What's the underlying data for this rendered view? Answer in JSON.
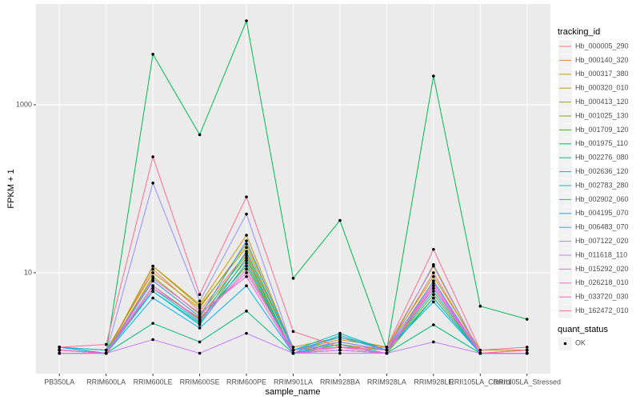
{
  "chart_data": {
    "type": "line",
    "x_label": "sample_name",
    "y_label": "FPKM + 1",
    "legend_title": "tracking_id",
    "point_legend_title": "quant_status",
    "point_legend_label": "OK",
    "point_color": "#000000",
    "log_scale": true,
    "grid": true,
    "panel_color": "#EBEBEB",
    "ylim": [
      0.63,
      15850
    ],
    "yticks": [
      10,
      1000
    ],
    "categories": [
      "PB350LA",
      "RRIM600LA",
      "RRIM600LE",
      "RRIM600SE",
      "RRIM600PE",
      "RRIM901LA",
      "RRIM928BA",
      "RRIM928LA",
      "RRIM928LE",
      "RRII105LA_Control",
      "RRII105LA_Stressed"
    ],
    "series": [
      {
        "name": "Hb_000005_290",
        "color": "#F8766D",
        "values": [
          1.3,
          1.1,
          11,
          3.5,
          17,
          1.2,
          1.5,
          1.2,
          10,
          1.1,
          1.2
        ]
      },
      {
        "name": "Hb_000140_320",
        "color": "#EA8331",
        "values": [
          1.2,
          1.1,
          8,
          3.0,
          14,
          1.1,
          1.3,
          1.1,
          8,
          1.1,
          1.1
        ]
      },
      {
        "name": "Hb_000317_380",
        "color": "#D89000",
        "values": [
          1.2,
          1.1,
          12,
          4.2,
          28,
          1.2,
          1.6,
          1.3,
          12,
          1.1,
          1.2
        ]
      },
      {
        "name": "Hb_000320_010",
        "color": "#C09B00",
        "values": [
          1.3,
          1.2,
          10,
          3.8,
          22,
          1.3,
          1.7,
          1.3,
          9,
          1.2,
          1.2
        ]
      },
      {
        "name": "Hb_000413_120",
        "color": "#A3A500",
        "values": [
          1.2,
          1.1,
          12,
          4.0,
          20,
          1.2,
          1.4,
          1.2,
          6.5,
          1.1,
          1.1
        ]
      },
      {
        "name": "Hb_001025_130",
        "color": "#7CAE00",
        "values": [
          1.2,
          1.1,
          9,
          3.2,
          16,
          1.1,
          1.3,
          1.2,
          5.5,
          1.1,
          1.1
        ]
      },
      {
        "name": "Hb_001709_120",
        "color": "#39B600",
        "values": [
          1.1,
          1.1,
          7,
          2.8,
          12,
          1.1,
          1.2,
          1.1,
          5,
          1.1,
          1.1
        ]
      },
      {
        "name": "Hb_001975_110",
        "color": "#00BB4E",
        "values": [
          1.2,
          1.1,
          4000,
          440,
          10000,
          8.6,
          42,
          1.2,
          2200,
          4,
          2.8
        ]
      },
      {
        "name": "Hb_002276_080",
        "color": "#00BF7D",
        "values": [
          1.1,
          1.1,
          2.5,
          1.5,
          3.5,
          1.1,
          1.2,
          1.1,
          2.4,
          1.1,
          1.1
        ]
      },
      {
        "name": "Hb_002636_120",
        "color": "#00C1A3",
        "values": [
          1.2,
          1.1,
          6,
          2.5,
          15,
          1.1,
          1.4,
          1.1,
          7,
          1.1,
          1.1
        ]
      },
      {
        "name": "Hb_002783_280",
        "color": "#00BFC4",
        "values": [
          1.3,
          1.1,
          6.5,
          2.6,
          18,
          1.2,
          1.9,
          1.2,
          6,
          1.1,
          1.1
        ]
      },
      {
        "name": "Hb_002902_060",
        "color": "#00BAE0",
        "values": [
          1.3,
          1.2,
          6,
          2.4,
          13,
          1.1,
          1.8,
          1.2,
          5,
          1.1,
          1.1
        ]
      },
      {
        "name": "Hb_004195_070",
        "color": "#00B0F6",
        "values": [
          1.3,
          1.1,
          5,
          2.2,
          7,
          1.1,
          1.5,
          1.2,
          4.5,
          1.1,
          1.1
        ]
      },
      {
        "name": "Hb_006483_070",
        "color": "#35A2FF",
        "values": [
          1.2,
          1.1,
          8,
          3.0,
          24,
          1.2,
          1.7,
          1.2,
          8,
          1.1,
          1.1
        ]
      },
      {
        "name": "Hb_007122_020",
        "color": "#9590FF",
        "values": [
          1.2,
          1.1,
          117,
          4.6,
          50,
          1.2,
          1.5,
          1.2,
          12.5,
          1.1,
          1.1
        ]
      },
      {
        "name": "Hb_011618_110",
        "color": "#C77CFF",
        "values": [
          1.1,
          1.1,
          1.6,
          1.1,
          1.9,
          1.1,
          1.1,
          1.1,
          1.5,
          1.1,
          1.1
        ]
      },
      {
        "name": "Hb_015292_020",
        "color": "#E76BF3",
        "values": [
          1.1,
          1.1,
          7,
          2.7,
          11,
          1.1,
          1.2,
          1.1,
          7,
          1.1,
          1.1
        ]
      },
      {
        "name": "Hb_026218_010",
        "color": "#FA62DB",
        "values": [
          1.2,
          1.1,
          8.5,
          3.3,
          9,
          1.1,
          1.3,
          1.1,
          7.5,
          1.1,
          1.1
        ]
      },
      {
        "name": "Hb_033720_030",
        "color": "#FF62BC",
        "values": [
          1.2,
          1.1,
          6.5,
          2.9,
          10,
          1.2,
          1.3,
          1.2,
          6.5,
          1.1,
          1.2
        ]
      },
      {
        "name": "Hb_162472_010",
        "color": "#FF6C91",
        "values": [
          1.3,
          1.4,
          240,
          5.5,
          80,
          2.0,
          1.3,
          1.3,
          19,
          1.2,
          1.3
        ]
      }
    ]
  }
}
